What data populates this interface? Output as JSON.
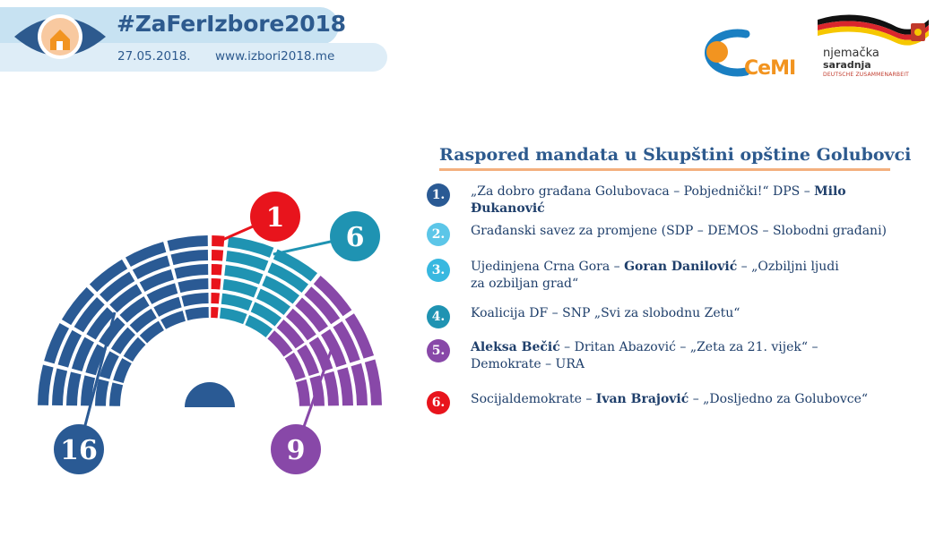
{
  "header": {
    "hashtag": "#ZaFerIzbore2018",
    "date": "27.05.2018.",
    "url": "www.izbori2018.me"
  },
  "logos": {
    "cemi_text": "CeMI",
    "german_line1": "njemačka",
    "german_line2": "saradnja",
    "german_line3": "DEUTSCHE ZUSAMMENARBEIT",
    "eye_icon": "eye-house-icon"
  },
  "title": "Raspored mandata u Skupštini opštine Golubovci",
  "legend": [
    {
      "num": "1.",
      "color": "#2a5a94",
      "parts": [
        {
          "t": "„Za dobro građana Golubovaca – Pobjednički!“ DPS – ",
          "b": false
        },
        {
          "t": "Milo Đukanović",
          "b": true
        }
      ]
    },
    {
      "num": "2.",
      "color": "#5cc6e8",
      "parts": [
        {
          "t": "Građanski savez za promjene (SDP – DEMOS – Slobodni građani)",
          "b": false
        }
      ]
    },
    {
      "num": "3.",
      "color": "#38b8e0",
      "parts": [
        {
          "t": "Ujedinjena Crna Gora – ",
          "b": false
        },
        {
          "t": "Goran Danilović",
          "b": true
        },
        {
          "t": " – „Ozbiljni ljudi za ozbiljan grad“",
          "b": false
        }
      ]
    },
    {
      "num": "4.",
      "color": "#1f93b2",
      "parts": [
        {
          "t": "Koalicija DF – SNP „Svi za slobodnu Zetu“",
          "b": false
        }
      ]
    },
    {
      "num": "5.",
      "color": "#8848a8",
      "parts": [
        {
          "t": "Aleksa Bečić",
          "b": true
        },
        {
          "t": " – Dritan Abazović – „Zeta za 21. vijek“ – Demokrate – URA",
          "b": false
        }
      ]
    },
    {
      "num": "6.",
      "color": "#e8141c",
      "parts": [
        {
          "t": "Socijaldemokrate – ",
          "b": false
        },
        {
          "t": "Ivan Brajović",
          "b": true
        },
        {
          "t": " – „Dosljedno za Golubovce“",
          "b": false
        }
      ]
    }
  ],
  "chart_data": {
    "type": "parliament",
    "total_seats": 32,
    "series": [
      {
        "label": "16",
        "value": 16,
        "color": "#2a5a94"
      },
      {
        "label": "1",
        "value": 1,
        "color": "#e8141c"
      },
      {
        "label": "6",
        "value": 6,
        "color": "#1f93b2"
      },
      {
        "label": "9",
        "value": 9,
        "color": "#8848a8"
      }
    ]
  }
}
